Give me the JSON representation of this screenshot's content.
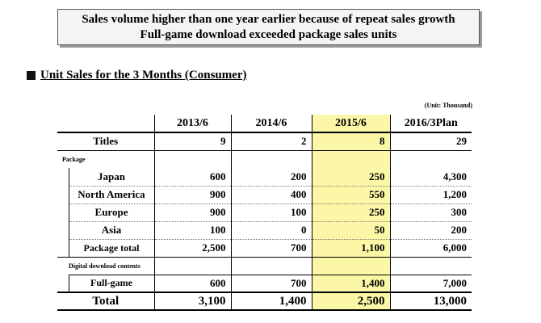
{
  "headline": {
    "line1": "Sales volume higher than one year earlier because of repeat sales growth",
    "line2": "Full-game download  exceeded package sales units"
  },
  "section_title": "Unit Sales for the 3 Months (Consumer)",
  "unit_note": "(Unit: Thousand)",
  "table": {
    "columns": [
      "2013/6",
      "2014/6",
      "2015/6",
      "2016/3Plan"
    ],
    "highlight_color": "#fcf7a6",
    "titles": {
      "label": "Titles",
      "values": [
        "9",
        "2",
        "8",
        "29"
      ]
    },
    "package_group_label": "Package",
    "package_rows": [
      {
        "label": "Japan",
        "values": [
          "600",
          "200",
          "250",
          "4,300"
        ]
      },
      {
        "label": "North America",
        "values": [
          "900",
          "400",
          "550",
          "1,200"
        ]
      },
      {
        "label": "Europe",
        "values": [
          "900",
          "100",
          "250",
          "300"
        ]
      },
      {
        "label": "Asia",
        "values": [
          "100",
          "0",
          "50",
          "200"
        ]
      }
    ],
    "package_total": {
      "label": "Package total",
      "values": [
        "2,500",
        "700",
        "1,100",
        "6,000"
      ]
    },
    "digital_group_label": "Digital download contents",
    "digital_rows": [
      {
        "label": "Full-game",
        "values": [
          "600",
          "700",
          "1,400",
          "7,000"
        ]
      }
    ],
    "total": {
      "label": "Total",
      "values": [
        "3,100",
        "1,400",
        "2,500",
        "13,000"
      ]
    }
  }
}
